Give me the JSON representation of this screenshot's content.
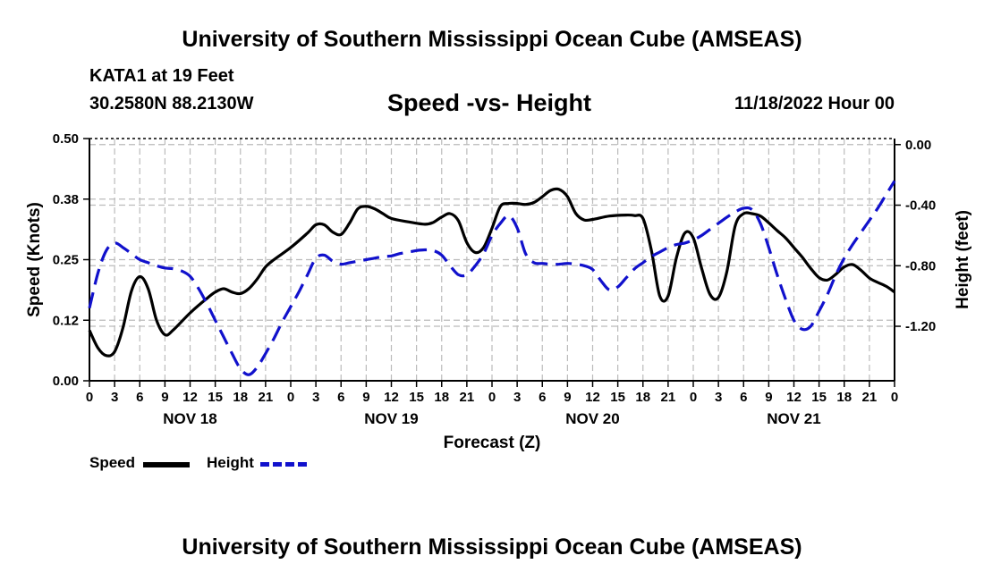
{
  "header": {
    "title": "University of Southern Mississippi Ocean Cube (AMSEAS)",
    "station": "KATA1 at 19 Feet",
    "coords": "30.2580N  88.2130W",
    "subtitle": "Speed -vs- Height",
    "datestamp": "11/18/2022 Hour 00"
  },
  "footer": {
    "title": "University of Southern Mississippi Ocean Cube (AMSEAS)"
  },
  "legend": {
    "speed_label": "Speed",
    "height_label": "Height"
  },
  "colors": {
    "speed": "#000000",
    "height": "#1111cc",
    "grid": "#bbbbbb"
  },
  "chart_data": {
    "type": "line",
    "title": "Speed -vs- Height",
    "xlabel": "Forecast (Z)",
    "ylabel": "Speed (Knots)",
    "y2label": "Height (feet)",
    "xlim": [
      0,
      96
    ],
    "ylim": [
      0,
      0.5
    ],
    "y2lim": [
      -1.56,
      0.04
    ],
    "grid": true,
    "legend_position": "bottom-left",
    "x_tick_values": [
      0,
      3,
      6,
      9,
      12,
      15,
      18,
      21,
      24,
      27,
      30,
      33,
      36,
      39,
      42,
      45,
      48,
      51,
      54,
      57,
      60,
      63,
      66,
      69,
      72,
      75,
      78,
      81,
      84,
      87,
      90,
      93,
      96
    ],
    "x_tick_labels": [
      "0",
      "3",
      "6",
      "9",
      "12",
      "15",
      "18",
      "21",
      "0",
      "3",
      "6",
      "9",
      "12",
      "15",
      "18",
      "21",
      "0",
      "3",
      "6",
      "9",
      "12",
      "15",
      "18",
      "21",
      "0",
      "3",
      "6",
      "9",
      "12",
      "15",
      "18",
      "21",
      "0"
    ],
    "day_labels": [
      {
        "x": 12,
        "label": "NOV 18"
      },
      {
        "x": 36,
        "label": "NOV 19"
      },
      {
        "x": 60,
        "label": "NOV 20"
      },
      {
        "x": 84,
        "label": "NOV 21"
      }
    ],
    "y_ticks": [
      0,
      0.125,
      0.25,
      0.375,
      0.5
    ],
    "y_tick_labels": [
      "0.00",
      "0.12",
      "0.25",
      "0.38",
      "0.50"
    ],
    "y2_ticks": [
      0,
      -0.4,
      -0.8,
      -1.2
    ],
    "y2_tick_labels": [
      "0.00",
      "-0.40",
      "-0.80",
      "-1.20"
    ],
    "series": [
      {
        "name": "Speed",
        "axis": "left",
        "style": "solid",
        "points": [
          [
            0,
            0.104
          ],
          [
            1,
            0.068
          ],
          [
            2,
            0.052
          ],
          [
            3,
            0.06
          ],
          [
            4,
            0.11
          ],
          [
            5,
            0.185
          ],
          [
            6,
            0.215
          ],
          [
            7,
            0.19
          ],
          [
            8,
            0.125
          ],
          [
            9,
            0.095
          ],
          [
            10,
            0.105
          ],
          [
            12,
            0.14
          ],
          [
            14,
            0.17
          ],
          [
            15,
            0.183
          ],
          [
            16,
            0.19
          ],
          [
            17,
            0.183
          ],
          [
            18,
            0.18
          ],
          [
            19,
            0.19
          ],
          [
            20,
            0.21
          ],
          [
            21,
            0.235
          ],
          [
            22,
            0.25
          ],
          [
            24,
            0.275
          ],
          [
            26,
            0.305
          ],
          [
            27,
            0.322
          ],
          [
            28,
            0.322
          ],
          [
            29,
            0.307
          ],
          [
            30,
            0.302
          ],
          [
            31,
            0.325
          ],
          [
            32,
            0.355
          ],
          [
            33,
            0.36
          ],
          [
            34,
            0.355
          ],
          [
            35,
            0.345
          ],
          [
            36,
            0.335
          ],
          [
            38,
            0.328
          ],
          [
            40,
            0.323
          ],
          [
            41,
            0.327
          ],
          [
            42,
            0.338
          ],
          [
            43,
            0.345
          ],
          [
            44,
            0.33
          ],
          [
            45,
            0.285
          ],
          [
            46,
            0.265
          ],
          [
            47,
            0.275
          ],
          [
            48,
            0.315
          ],
          [
            49,
            0.36
          ],
          [
            50,
            0.366
          ],
          [
            51,
            0.366
          ],
          [
            52,
            0.364
          ],
          [
            53,
            0.368
          ],
          [
            54,
            0.38
          ],
          [
            55,
            0.393
          ],
          [
            56,
            0.395
          ],
          [
            57,
            0.38
          ],
          [
            58,
            0.345
          ],
          [
            59,
            0.332
          ],
          [
            60,
            0.333
          ],
          [
            62,
            0.34
          ],
          [
            64,
            0.342
          ],
          [
            65,
            0.341
          ],
          [
            66,
            0.335
          ],
          [
            67,
            0.27
          ],
          [
            68,
            0.175
          ],
          [
            69,
            0.175
          ],
          [
            70,
            0.255
          ],
          [
            71,
            0.305
          ],
          [
            72,
            0.295
          ],
          [
            73,
            0.232
          ],
          [
            74,
            0.178
          ],
          [
            75,
            0.172
          ],
          [
            76,
            0.225
          ],
          [
            77,
            0.32
          ],
          [
            78,
            0.345
          ],
          [
            79,
            0.345
          ],
          [
            80,
            0.34
          ],
          [
            81,
            0.326
          ],
          [
            82,
            0.31
          ],
          [
            83,
            0.295
          ],
          [
            84,
            0.275
          ],
          [
            85,
            0.255
          ],
          [
            86,
            0.232
          ],
          [
            87,
            0.213
          ],
          [
            88,
            0.208
          ],
          [
            89,
            0.22
          ],
          [
            90,
            0.235
          ],
          [
            91,
            0.24
          ],
          [
            92,
            0.228
          ],
          [
            93,
            0.212
          ],
          [
            94,
            0.203
          ],
          [
            95,
            0.195
          ],
          [
            96,
            0.183
          ]
        ]
      },
      {
        "name": "Height",
        "axis": "right",
        "style": "dashed",
        "points": [
          [
            0,
            -1.08
          ],
          [
            1,
            -0.85
          ],
          [
            2,
            -0.7
          ],
          [
            3,
            -0.65
          ],
          [
            4,
            -0.68
          ],
          [
            5,
            -0.72
          ],
          [
            6,
            -0.76
          ],
          [
            7,
            -0.78
          ],
          [
            8,
            -0.8
          ],
          [
            9,
            -0.815
          ],
          [
            10,
            -0.82
          ],
          [
            11,
            -0.835
          ],
          [
            12,
            -0.87
          ],
          [
            13,
            -0.95
          ],
          [
            14,
            -1.05
          ],
          [
            15,
            -1.16
          ],
          [
            16,
            -1.27
          ],
          [
            17,
            -1.38
          ],
          [
            18,
            -1.48
          ],
          [
            19,
            -1.52
          ],
          [
            20,
            -1.47
          ],
          [
            21,
            -1.38
          ],
          [
            22,
            -1.28
          ],
          [
            23,
            -1.17
          ],
          [
            24,
            -1.07
          ],
          [
            25,
            -0.97
          ],
          [
            26,
            -0.86
          ],
          [
            27,
            -0.75
          ],
          [
            28,
            -0.73
          ],
          [
            29,
            -0.77
          ],
          [
            30,
            -0.79
          ],
          [
            31,
            -0.78
          ],
          [
            32,
            -0.77
          ],
          [
            33,
            -0.76
          ],
          [
            34,
            -0.75
          ],
          [
            35,
            -0.74
          ],
          [
            36,
            -0.735
          ],
          [
            37,
            -0.72
          ],
          [
            38,
            -0.71
          ],
          [
            39,
            -0.7
          ],
          [
            40,
            -0.695
          ],
          [
            41,
            -0.7
          ],
          [
            42,
            -0.73
          ],
          [
            43,
            -0.8
          ],
          [
            44,
            -0.86
          ],
          [
            45,
            -0.86
          ],
          [
            46,
            -0.8
          ],
          [
            47,
            -0.72
          ],
          [
            48,
            -0.6
          ],
          [
            49,
            -0.52
          ],
          [
            50,
            -0.47
          ],
          [
            51,
            -0.55
          ],
          [
            52,
            -0.72
          ],
          [
            53,
            -0.78
          ],
          [
            54,
            -0.785
          ],
          [
            55,
            -0.79
          ],
          [
            56,
            -0.79
          ],
          [
            57,
            -0.785
          ],
          [
            58,
            -0.79
          ],
          [
            59,
            -0.8
          ],
          [
            60,
            -0.825
          ],
          [
            61,
            -0.9
          ],
          [
            62,
            -0.96
          ],
          [
            63,
            -0.94
          ],
          [
            64,
            -0.88
          ],
          [
            65,
            -0.82
          ],
          [
            66,
            -0.78
          ],
          [
            67,
            -0.74
          ],
          [
            68,
            -0.71
          ],
          [
            69,
            -0.68
          ],
          [
            70,
            -0.66
          ],
          [
            71,
            -0.65
          ],
          [
            72,
            -0.63
          ],
          [
            73,
            -0.6
          ],
          [
            74,
            -0.56
          ],
          [
            75,
            -0.52
          ],
          [
            76,
            -0.48
          ],
          [
            77,
            -0.445
          ],
          [
            78,
            -0.42
          ],
          [
            79,
            -0.43
          ],
          [
            80,
            -0.52
          ],
          [
            81,
            -0.68
          ],
          [
            82,
            -0.86
          ],
          [
            83,
            -1.02
          ],
          [
            84,
            -1.16
          ],
          [
            85,
            -1.22
          ],
          [
            86,
            -1.2
          ],
          [
            87,
            -1.1
          ],
          [
            88,
            -0.99
          ],
          [
            89,
            -0.86
          ],
          [
            90,
            -0.75
          ],
          [
            91,
            -0.66
          ],
          [
            92,
            -0.58
          ],
          [
            93,
            -0.5
          ],
          [
            94,
            -0.42
          ],
          [
            95,
            -0.33
          ],
          [
            96,
            -0.24
          ]
        ]
      }
    ]
  }
}
